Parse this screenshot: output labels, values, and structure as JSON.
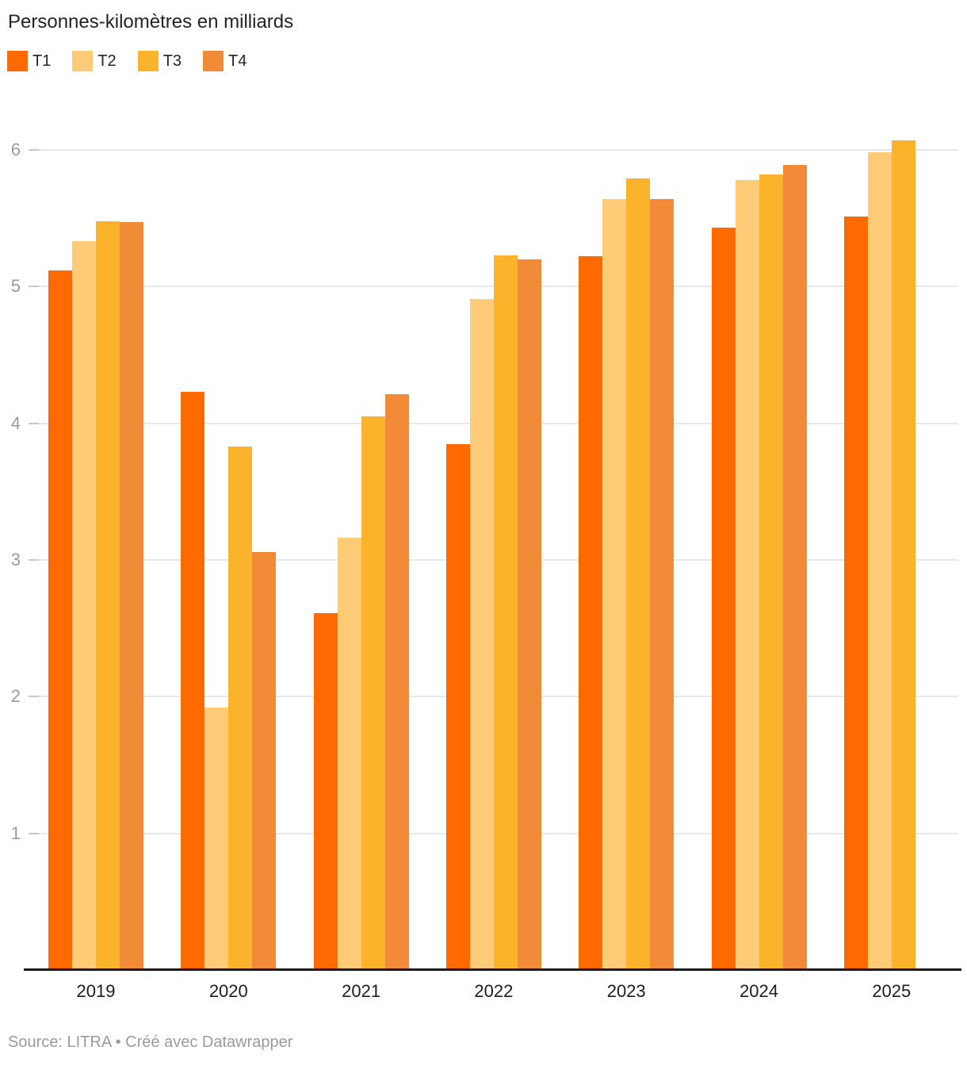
{
  "title": "Personnes-kilomètres en milliards",
  "footer": {
    "text": "Source: LITRA • Créé avec Datawrapper"
  },
  "colors": {
    "t1": "#FF6A00",
    "t2": "#FFCB77",
    "t3": "#FBB32B",
    "t4": "#F18B38",
    "axis": "#1a1a1a",
    "gridline": "#e8e8e8",
    "axis_text": "#9b9b9b"
  },
  "chart_data": {
    "type": "bar",
    "title": "Personnes-kilomètres en milliards",
    "xlabel": "",
    "ylabel": "",
    "categories": [
      "2019",
      "2020",
      "2021",
      "2022",
      "2023",
      "2024",
      "2025"
    ],
    "series": [
      {
        "name": "T1",
        "color": "#FF6A00",
        "values": [
          5.12,
          4.23,
          2.61,
          3.85,
          5.22,
          5.43,
          5.51
        ]
      },
      {
        "name": "T2",
        "color": "#FFCB77",
        "values": [
          5.33,
          1.92,
          3.16,
          4.91,
          5.64,
          5.78,
          5.98
        ]
      },
      {
        "name": "T3",
        "color": "#FBB32B",
        "values": [
          5.48,
          3.83,
          4.05,
          5.23,
          5.79,
          5.82,
          6.07
        ]
      },
      {
        "name": "T4",
        "color": "#F18B38",
        "values": [
          5.47,
          3.06,
          4.21,
          5.2,
          5.64,
          5.89,
          null
        ]
      }
    ],
    "yticks": [
      1,
      2,
      3,
      4,
      5,
      6
    ],
    "ylim": [
      0,
      6.28
    ],
    "grid": true,
    "legend_position": "top"
  }
}
